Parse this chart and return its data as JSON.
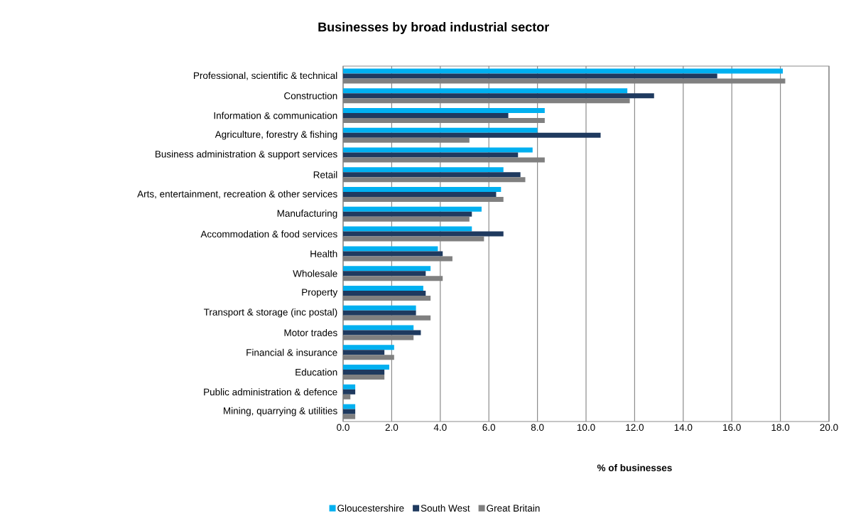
{
  "chart_data": {
    "type": "bar",
    "orientation": "horizontal",
    "title": "Businesses by broad industrial sector",
    "xlabel": "% of businesses",
    "categories": [
      "Professional, scientific & technical",
      "Construction",
      "Information & communication",
      "Agriculture, forestry & fishing",
      "Business administration & support services",
      "Retail",
      "Arts, entertainment, recreation & other services",
      "Manufacturing",
      "Accommodation & food services",
      "Health",
      "Wholesale",
      "Property",
      "Transport & storage (inc postal)",
      "Motor trades",
      "Financial & insurance",
      "Education",
      "Public administration & defence",
      "Mining, quarrying & utilities"
    ],
    "series": [
      {
        "name": "Gloucestershire",
        "color": "#00b0f0",
        "values": [
          18.1,
          11.7,
          8.3,
          8.0,
          7.8,
          6.6,
          6.5,
          5.7,
          5.3,
          3.9,
          3.6,
          3.3,
          3.0,
          2.9,
          2.1,
          1.9,
          0.5,
          0.5
        ]
      },
      {
        "name": "South West",
        "color": "#1f3a5f",
        "values": [
          15.4,
          12.8,
          6.8,
          10.6,
          7.2,
          7.3,
          6.3,
          5.3,
          6.6,
          4.1,
          3.4,
          3.4,
          3.0,
          3.2,
          1.7,
          1.7,
          0.5,
          0.5
        ]
      },
      {
        "name": "Great Britain",
        "color": "#808080",
        "values": [
          18.2,
          11.8,
          8.3,
          5.2,
          8.3,
          7.5,
          6.6,
          5.2,
          5.8,
          4.5,
          4.1,
          3.6,
          3.6,
          2.9,
          2.1,
          1.7,
          0.3,
          0.5
        ]
      }
    ],
    "xlim": [
      0,
      20
    ],
    "xticks": [
      {
        "value": 0,
        "label": "0.0"
      },
      {
        "value": 2,
        "label": "2.0"
      },
      {
        "value": 4,
        "label": "4.0"
      },
      {
        "value": 6,
        "label": "6.0"
      },
      {
        "value": 8,
        "label": "8.0"
      },
      {
        "value": 10,
        "label": "10.0"
      },
      {
        "value": 12,
        "label": "12.0"
      },
      {
        "value": 14,
        "label": "14.0"
      },
      {
        "value": 16,
        "label": "16.0"
      },
      {
        "value": 18,
        "label": "18.0"
      },
      {
        "value": 20,
        "label": "20.0"
      }
    ],
    "grid": "x",
    "legend": "bottom"
  }
}
